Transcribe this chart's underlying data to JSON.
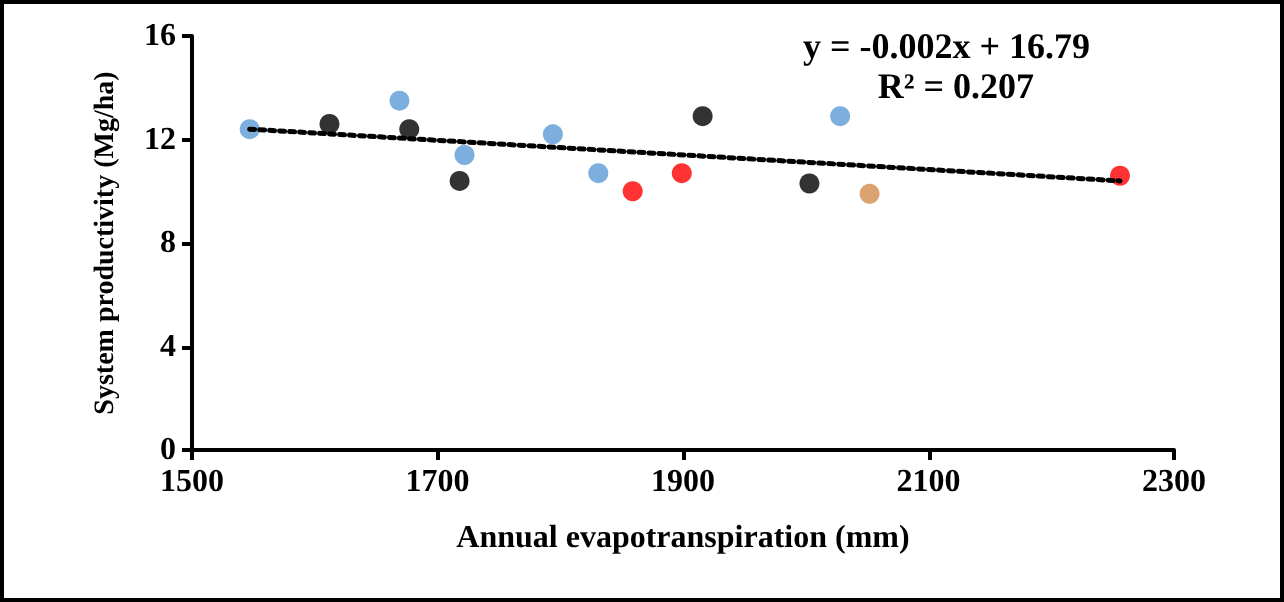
{
  "chart_data": {
    "type": "scatter",
    "xlabel": "Annual evapotranspiration (mm)",
    "ylabel": "System productivity (Mg/ha)",
    "annotations": [
      "y = -0.002x + 16.79",
      "R² = 0.207"
    ],
    "series": [
      {
        "x": [
          1547,
          1612,
          1669,
          1677,
          1718,
          1722,
          1794,
          1831,
          1859,
          1899,
          1916,
          2003,
          2028,
          2052,
          2256
        ],
        "values": [
          12.4,
          12.6,
          13.5,
          12.4,
          10.4,
          11.4,
          12.2,
          10.7,
          10.0,
          10.7,
          12.9,
          10.3,
          12.9,
          9.9,
          10.6
        ],
        "colors": [
          "#5b9bd5",
          "#000000",
          "#5b9bd5",
          "#000000",
          "#000000",
          "#5b9bd5",
          "#5b9bd5",
          "#5b9bd5",
          "#ff0000",
          "#ff0000",
          "#000000",
          "#000000",
          "#5b9bd5",
          "#d38b4c",
          "#ff0000"
        ],
        "marker": "circle"
      },
      {
        "type": "line",
        "x": [
          1547,
          2256
        ],
        "values": [
          12.4,
          10.4
        ],
        "color": "#000000",
        "line_style": "dotted",
        "marker": "none"
      }
    ],
    "xlim": [
      1500,
      2300
    ],
    "xticks": [
      1500,
      1700,
      1900,
      2100,
      2300
    ],
    "ylim": [
      0,
      16
    ],
    "yticks": [
      0,
      4,
      8,
      12,
      16
    ],
    "grid": false
  }
}
